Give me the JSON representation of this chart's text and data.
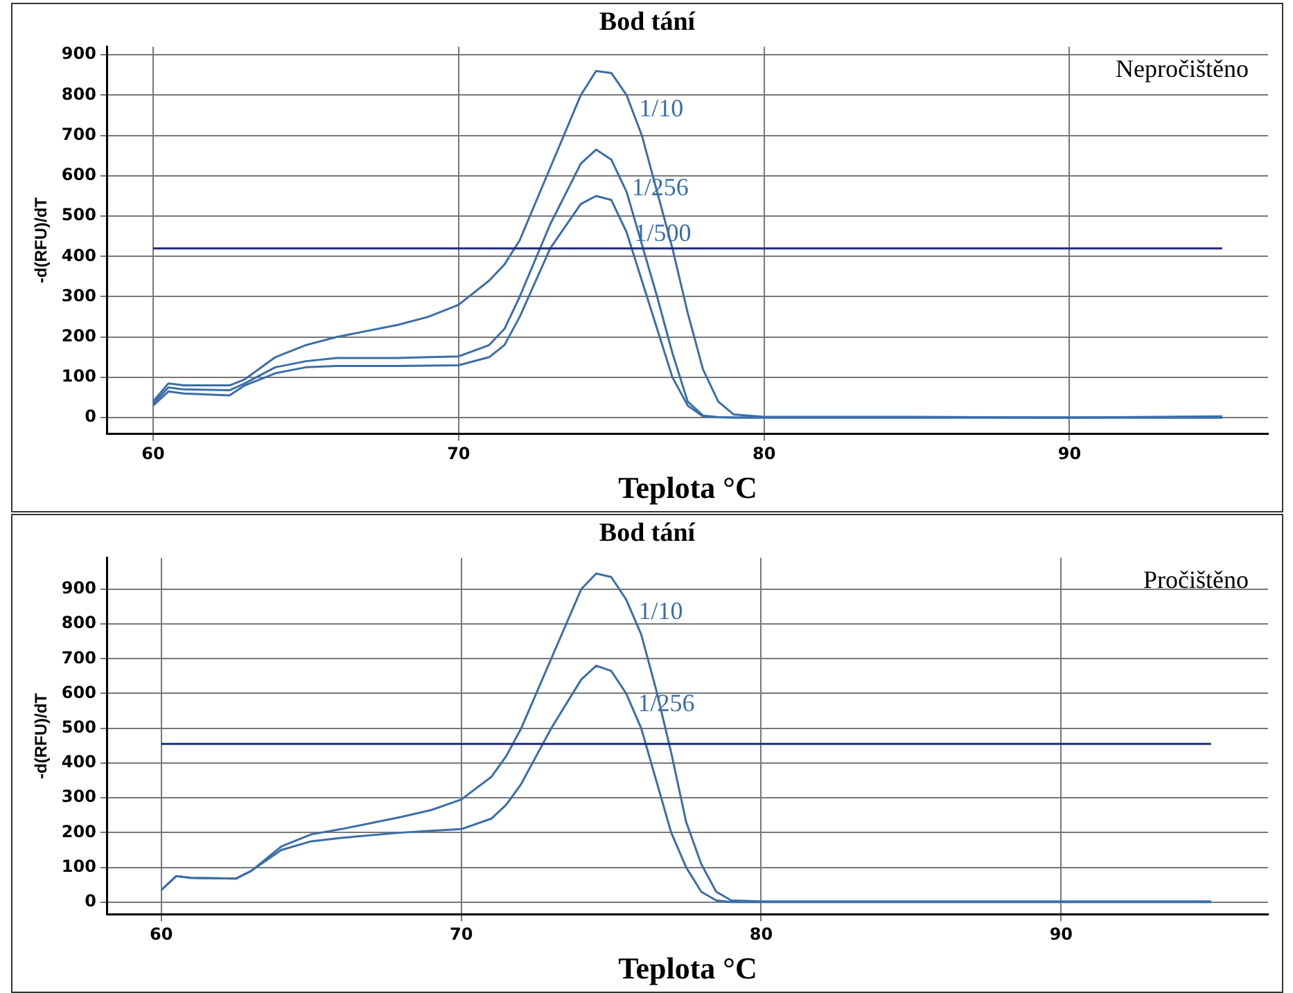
{
  "chart_data": [
    {
      "type": "line",
      "title": "Bod tání",
      "xlabel": "Teplota °C",
      "ylabel": "-d(RFU)/dT",
      "annotations": [
        "Nepročištěno"
      ],
      "xlim": [
        58.5,
        96.5
      ],
      "xticks": [
        60,
        70,
        80,
        90
      ],
      "ylim": [
        -40,
        920
      ],
      "yticks": [
        0,
        100,
        200,
        300,
        400,
        500,
        600,
        700,
        800,
        900
      ],
      "grid": true,
      "legend": false,
      "marker": "none",
      "line_style": "solid",
      "ref_lines": [
        {
          "axis": "y",
          "value": 420,
          "color": "#1f2d7a"
        }
      ],
      "x": [
        60,
        60.5,
        61,
        62.5,
        63,
        64,
        65,
        66,
        68,
        69,
        70,
        71,
        71.5,
        72,
        73,
        74,
        74.5,
        75,
        75.5,
        76,
        76.5,
        77,
        77.5,
        78,
        78.5,
        79,
        80,
        85,
        90,
        95
      ],
      "series": [
        {
          "name": "1/10",
          "color": "#3b6ea8",
          "values": [
            40,
            85,
            80,
            80,
            95,
            150,
            180,
            200,
            230,
            250,
            280,
            340,
            380,
            440,
            620,
            800,
            860,
            855,
            800,
            700,
            560,
            420,
            260,
            120,
            40,
            8,
            2,
            2,
            0,
            3
          ]
        },
        {
          "name": "1/256",
          "color": "#3b6ea8",
          "values": [
            35,
            75,
            70,
            68,
            85,
            125,
            140,
            148,
            148,
            150,
            152,
            180,
            220,
            300,
            480,
            630,
            665,
            640,
            560,
            430,
            300,
            160,
            40,
            5,
            1,
            0,
            0,
            0,
            0,
            0
          ]
        },
        {
          "name": "1/500",
          "color": "#3b6ea8",
          "values": [
            30,
            65,
            60,
            55,
            80,
            110,
            125,
            128,
            128,
            129,
            130,
            150,
            180,
            250,
            420,
            530,
            550,
            540,
            460,
            340,
            220,
            100,
            30,
            3,
            1,
            0,
            0,
            0,
            0,
            0
          ]
        }
      ]
    },
    {
      "type": "line",
      "title": "Bod tání",
      "xlabel": "Teplota °C",
      "ylabel": "-d(RFU)/dT",
      "annotations": [
        "Pročištěno"
      ],
      "xlim": [
        58.2,
        96.9
      ],
      "xticks": [
        60,
        70,
        80,
        90
      ],
      "ylim": [
        -35,
        990
      ],
      "yticks": [
        0,
        100,
        200,
        300,
        400,
        500,
        600,
        700,
        800,
        900
      ],
      "grid": true,
      "legend": false,
      "marker": "none",
      "line_style": "solid",
      "ref_lines": [
        {
          "axis": "y",
          "value": 455,
          "color": "#1f2d7a"
        }
      ],
      "x": [
        60,
        60.5,
        61,
        62.5,
        63,
        64,
        65,
        66,
        68,
        69,
        70,
        71,
        71.5,
        72,
        73,
        74,
        74.5,
        75,
        75.5,
        76,
        76.5,
        77,
        77.5,
        78,
        78.5,
        79,
        80,
        85,
        90,
        95
      ],
      "series": [
        {
          "name": "1/10",
          "color": "#3b6ea8",
          "values": [
            35,
            75,
            70,
            68,
            90,
            160,
            195,
            210,
            245,
            265,
            295,
            360,
            420,
            500,
            700,
            900,
            945,
            935,
            870,
            770,
            610,
            430,
            230,
            110,
            30,
            5,
            2,
            2,
            2,
            2
          ]
        },
        {
          "name": "1/256",
          "color": "#3b6ea8",
          "values": [
            35,
            75,
            70,
            68,
            90,
            150,
            175,
            185,
            200,
            205,
            210,
            240,
            280,
            340,
            500,
            640,
            680,
            665,
            600,
            500,
            350,
            200,
            100,
            30,
            5,
            0,
            0,
            0,
            0,
            0
          ]
        }
      ]
    }
  ]
}
